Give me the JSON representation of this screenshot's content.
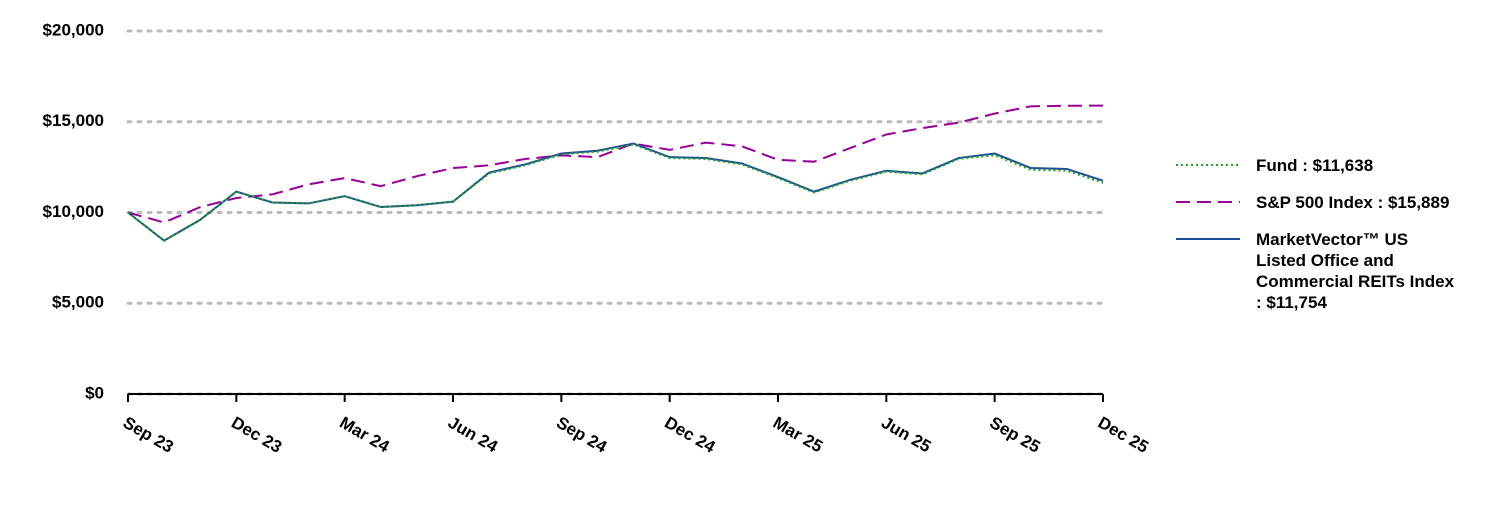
{
  "chart_data": {
    "type": "line",
    "categories": [
      "Sep 23",
      null,
      null,
      "Dec 23",
      null,
      null,
      "Mar 24",
      null,
      null,
      "Jun 24",
      null,
      null,
      "Sep 24",
      null,
      null,
      "Dec 24",
      null,
      null,
      "Mar 25",
      null,
      null,
      "Jun 25",
      null,
      null,
      "Sep 25",
      null,
      null,
      "Dec 25"
    ],
    "series": [
      {
        "name": "Fund : $11,638",
        "color": "#1fa51f",
        "style": "dotted",
        "values": [
          10000,
          8450,
          9600,
          11150,
          10550,
          10500,
          10900,
          10300,
          10400,
          10600,
          12150,
          12600,
          13200,
          13350,
          13750,
          13000,
          12950,
          12650,
          11900,
          11100,
          11750,
          12250,
          12100,
          12950,
          13150,
          12350,
          12300,
          11638
        ]
      },
      {
        "name": "S&P 500 Index : $15,889",
        "color": "#990099",
        "style": "dashed",
        "values": [
          10000,
          9450,
          10300,
          10800,
          11000,
          11550,
          11900,
          11450,
          12000,
          12450,
          12600,
          12950,
          13150,
          13050,
          13800,
          13450,
          13850,
          13650,
          12900,
          12800,
          13550,
          14300,
          14650,
          14950,
          15450,
          15850,
          15880,
          15889
        ]
      },
      {
        "name": "MarketVector™ US Listed Office and Commercial REITs Index : $11,754",
        "color": "#1f4e9a",
        "style": "solid",
        "values": [
          10000,
          8450,
          9600,
          11150,
          10550,
          10500,
          10900,
          10300,
          10400,
          10600,
          12200,
          12650,
          13250,
          13400,
          13800,
          13050,
          13000,
          12700,
          11950,
          11150,
          11800,
          12300,
          12150,
          13000,
          13250,
          12450,
          12400,
          11754
        ]
      }
    ],
    "ylim": [
      0,
      20000
    ],
    "yticks": [
      {
        "value": 0,
        "label": "$0"
      },
      {
        "value": 5000,
        "label": "$5,000"
      },
      {
        "value": 10000,
        "label": "$10,000"
      },
      {
        "value": 15000,
        "label": "$15,000"
      },
      {
        "value": 20000,
        "label": "$20,000"
      }
    ],
    "grid": true,
    "legend": "right"
  }
}
